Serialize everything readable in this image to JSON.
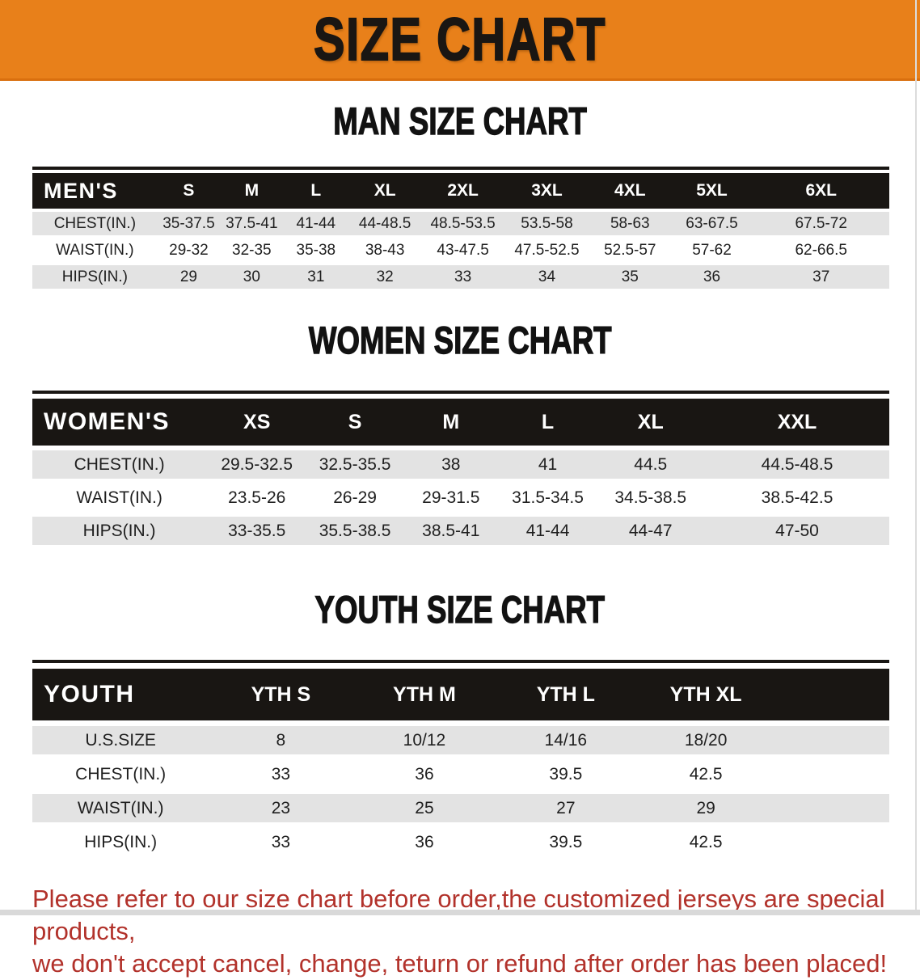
{
  "banner": {
    "title": "SIZE CHART",
    "bg_color": "#E8801A",
    "text_color": "#1A1613"
  },
  "tables": {
    "men": {
      "heading": "MAN SIZE CHART",
      "label": "MEN'S",
      "columns": [
        "S",
        "M",
        "L",
        "XL",
        "2XL",
        "3XL",
        "4XL",
        "5XL",
        "6XL"
      ],
      "rows": [
        {
          "label": "CHEST(IN.)",
          "values": [
            "35-37.5",
            "37.5-41",
            "41-44",
            "44-48.5",
            "48.5-53.5",
            "53.5-58",
            "58-63",
            "63-67.5",
            "67.5-72"
          ]
        },
        {
          "label": "WAIST(IN.)",
          "values": [
            "29-32",
            "32-35",
            "35-38",
            "38-43",
            "43-47.5",
            "47.5-52.5",
            "52.5-57",
            "57-62",
            "62-66.5"
          ]
        },
        {
          "label": "HIPS(IN.)",
          "values": [
            "29",
            "30",
            "31",
            "32",
            "33",
            "34",
            "35",
            "36",
            "37"
          ]
        }
      ]
    },
    "women": {
      "heading": "WOMEN SIZE CHART",
      "label": "WOMEN'S",
      "columns": [
        "XS",
        "S",
        "M",
        "L",
        "XL",
        "XXL"
      ],
      "rows": [
        {
          "label": "CHEST(IN.)",
          "values": [
            "29.5-32.5",
            "32.5-35.5",
            "38",
            "41",
            "44.5",
            "44.5-48.5"
          ]
        },
        {
          "label": "WAIST(IN.)",
          "values": [
            "23.5-26",
            "26-29",
            "29-31.5",
            "31.5-34.5",
            "34.5-38.5",
            "38.5-42.5"
          ]
        },
        {
          "label": "HIPS(IN.)",
          "values": [
            "33-35.5",
            "35.5-38.5",
            "38.5-41",
            "41-44",
            "44-47",
            "47-50"
          ]
        }
      ]
    },
    "youth": {
      "heading": "YOUTH SIZE CHART",
      "label": "YOUTH",
      "columns": [
        "YTH S",
        "YTH M",
        "YTH L",
        "YTH XL"
      ],
      "rows": [
        {
          "label": "U.S.SIZE",
          "values": [
            "8",
            "10/12",
            "14/16",
            "18/20"
          ]
        },
        {
          "label": "CHEST(IN.)",
          "values": [
            "33",
            "36",
            "39.5",
            "42.5"
          ]
        },
        {
          "label": "WAIST(IN.)",
          "values": [
            "23",
            "25",
            "27",
            "29"
          ]
        },
        {
          "label": "HIPS(IN.)",
          "values": [
            "33",
            "36",
            "39.5",
            "42.5"
          ]
        }
      ]
    }
  },
  "note": {
    "line1": "Please refer to our size chart before order,the customized jerseys are special products,",
    "line2": "we don't accept cancel, change, teturn or refund after order has been placed!",
    "color": "#B2322B"
  },
  "colors": {
    "header_bar": "#191613",
    "row_stripe": "#E3E3E3",
    "row_alt": "#FFFFFF",
    "banner_border": "#D96F0E"
  }
}
